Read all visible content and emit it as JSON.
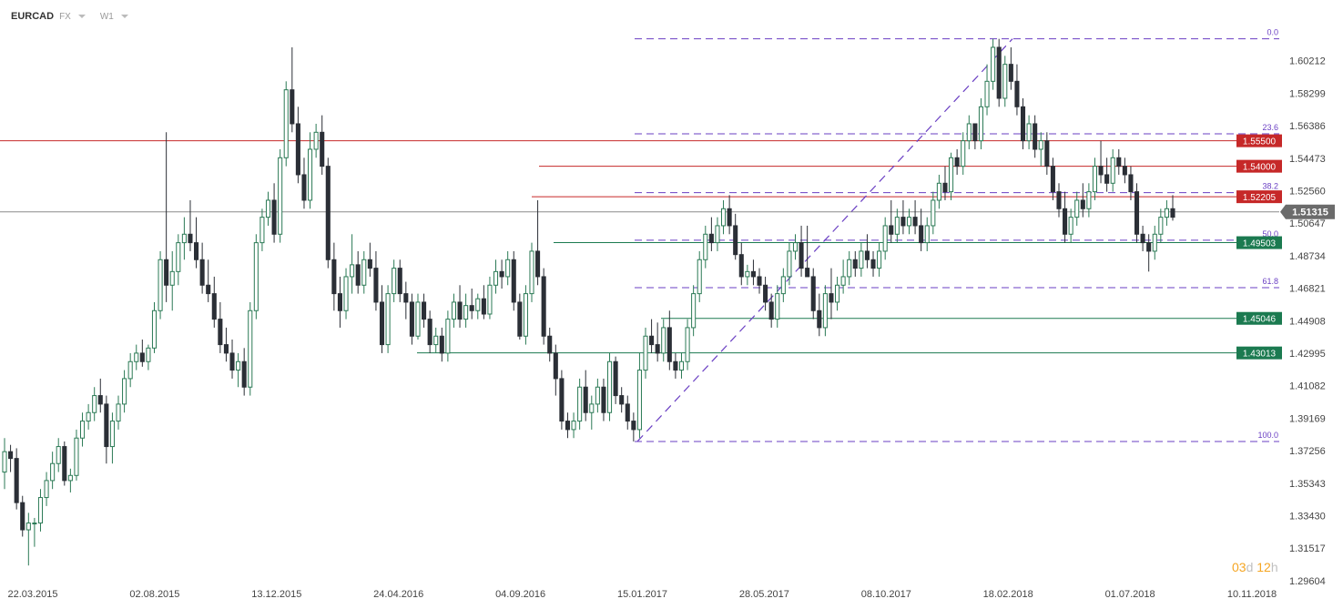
{
  "header": {
    "symbol": "EURCAD",
    "market": "FX",
    "interval": "W1"
  },
  "countdown": {
    "days": "03",
    "days_unit": "d",
    "hours": "12",
    "hours_unit": "h"
  },
  "colors": {
    "up": "#ffffff",
    "up_border": "#2b7a55",
    "down": "#2b2f36",
    "resistance": "#c62828",
    "support": "#1b7a50",
    "fib": "#6a3fc3",
    "current": "#8a8a8a"
  },
  "chart_data": {
    "type": "candlestick",
    "ylim": [
      1.296,
      1.625
    ],
    "y_ticks": [
      "1.60212",
      "1.58299",
      "1.56386",
      "1.54473",
      "1.52560",
      "1.50647",
      "1.48734",
      "1.46821",
      "1.44908",
      "1.42995",
      "1.41082",
      "1.39169",
      "1.37256",
      "1.35343",
      "1.33430",
      "1.31517",
      "1.29604"
    ],
    "x_ticks": [
      "22.03.2015",
      "02.08.2015",
      "13.12.2015",
      "24.04.2016",
      "04.09.2016",
      "15.01.2017",
      "28.05.2017",
      "08.10.2017",
      "18.02.2018",
      "01.07.2018",
      "10.11.2018"
    ],
    "current_price": {
      "label": "1.51315",
      "value": 1.51315
    },
    "resistance_levels": [
      {
        "label": "1.55500",
        "value": 1.555
      },
      {
        "label": "1.54000",
        "value": 1.54
      },
      {
        "label": "1.52205",
        "value": 1.52205
      }
    ],
    "support_levels": [
      {
        "label": "1.49503",
        "value": 1.49503
      },
      {
        "label": "1.45046",
        "value": 1.45046
      },
      {
        "label": "1.43013",
        "value": 1.43013
      }
    ],
    "fibonacci": {
      "high": 1.615,
      "low": 1.378,
      "levels": [
        {
          "label": "0.0",
          "ratio": 0.0
        },
        {
          "label": "23.6",
          "ratio": 0.236
        },
        {
          "label": "38.2",
          "ratio": 0.382
        },
        {
          "label": "50.0",
          "ratio": 0.5
        },
        {
          "label": "61.8",
          "ratio": 0.618
        },
        {
          "label": "100.0",
          "ratio": 1.0
        }
      ]
    },
    "candles": [
      [
        1.36,
        1.38,
        1.35,
        1.372
      ],
      [
        1.372,
        1.376,
        1.36,
        1.368
      ],
      [
        1.368,
        1.374,
        1.338,
        1.342
      ],
      [
        1.342,
        1.346,
        1.322,
        1.326
      ],
      [
        1.326,
        1.336,
        1.305,
        1.33
      ],
      [
        1.33,
        1.333,
        1.316,
        1.33
      ],
      [
        1.33,
        1.35,
        1.325,
        1.345
      ],
      [
        1.345,
        1.36,
        1.34,
        1.355
      ],
      [
        1.355,
        1.372,
        1.35,
        1.365
      ],
      [
        1.365,
        1.38,
        1.36,
        1.375
      ],
      [
        1.375,
        1.378,
        1.352,
        1.355
      ],
      [
        1.355,
        1.362,
        1.348,
        1.358
      ],
      [
        1.358,
        1.385,
        1.355,
        1.38
      ],
      [
        1.38,
        1.395,
        1.375,
        1.39
      ],
      [
        1.39,
        1.4,
        1.385,
        1.395
      ],
      [
        1.395,
        1.41,
        1.39,
        1.405
      ],
      [
        1.405,
        1.415,
        1.395,
        1.4
      ],
      [
        1.4,
        1.405,
        1.365,
        1.375
      ],
      [
        1.375,
        1.395,
        1.365,
        1.39
      ],
      [
        1.39,
        1.405,
        1.385,
        1.4
      ],
      [
        1.4,
        1.42,
        1.395,
        1.415
      ],
      [
        1.415,
        1.43,
        1.41,
        1.425
      ],
      [
        1.425,
        1.435,
        1.42,
        1.43
      ],
      [
        1.43,
        1.438,
        1.422,
        1.425
      ],
      [
        1.425,
        1.435,
        1.42,
        1.433
      ],
      [
        1.433,
        1.46,
        1.43,
        1.455
      ],
      [
        1.455,
        1.49,
        1.45,
        1.485
      ],
      [
        1.485,
        1.56,
        1.46,
        1.47
      ],
      [
        1.47,
        1.49,
        1.455,
        1.478
      ],
      [
        1.478,
        1.5,
        1.47,
        1.495
      ],
      [
        1.495,
        1.51,
        1.485,
        1.5
      ],
      [
        1.5,
        1.52,
        1.49,
        1.495
      ],
      [
        1.495,
        1.51,
        1.48,
        1.485
      ],
      [
        1.485,
        1.495,
        1.465,
        1.47
      ],
      [
        1.47,
        1.485,
        1.46,
        1.465
      ],
      [
        1.465,
        1.475,
        1.445,
        1.45
      ],
      [
        1.45,
        1.46,
        1.43,
        1.435
      ],
      [
        1.435,
        1.445,
        1.425,
        1.43
      ],
      [
        1.43,
        1.438,
        1.415,
        1.42
      ],
      [
        1.42,
        1.43,
        1.41,
        1.425
      ],
      [
        1.425,
        1.433,
        1.405,
        1.41
      ],
      [
        1.41,
        1.46,
        1.405,
        1.455
      ],
      [
        1.455,
        1.5,
        1.45,
        1.495
      ],
      [
        1.495,
        1.515,
        1.49,
        1.51
      ],
      [
        1.51,
        1.525,
        1.505,
        1.52
      ],
      [
        1.52,
        1.53,
        1.495,
        1.5
      ],
      [
        1.5,
        1.55,
        1.495,
        1.545
      ],
      [
        1.545,
        1.59,
        1.54,
        1.585
      ],
      [
        1.585,
        1.61,
        1.56,
        1.565
      ],
      [
        1.565,
        1.575,
        1.53,
        1.535
      ],
      [
        1.535,
        1.545,
        1.515,
        1.52
      ],
      [
        1.52,
        1.56,
        1.515,
        1.55
      ],
      [
        1.55,
        1.565,
        1.545,
        1.56
      ],
      [
        1.56,
        1.57,
        1.535,
        1.54
      ],
      [
        1.54,
        1.545,
        1.48,
        1.485
      ],
      [
        1.485,
        1.495,
        1.455,
        1.465
      ],
      [
        1.465,
        1.475,
        1.445,
        1.455
      ],
      [
        1.455,
        1.48,
        1.45,
        1.475
      ],
      [
        1.475,
        1.5,
        1.465,
        1.482
      ],
      [
        1.482,
        1.49,
        1.465,
        1.47
      ],
      [
        1.47,
        1.49,
        1.465,
        1.485
      ],
      [
        1.485,
        1.495,
        1.475,
        1.48
      ],
      [
        1.48,
        1.49,
        1.455,
        1.46
      ],
      [
        1.46,
        1.47,
        1.43,
        1.435
      ],
      [
        1.435,
        1.47,
        1.43,
        1.465
      ],
      [
        1.465,
        1.485,
        1.46,
        1.48
      ],
      [
        1.48,
        1.485,
        1.46,
        1.465
      ],
      [
        1.465,
        1.472,
        1.45,
        1.46
      ],
      [
        1.46,
        1.465,
        1.435,
        1.44
      ],
      [
        1.44,
        1.465,
        1.438,
        1.46
      ],
      [
        1.46,
        1.465,
        1.445,
        1.45
      ],
      [
        1.45,
        1.455,
        1.43,
        1.435
      ],
      [
        1.435,
        1.445,
        1.43,
        1.44
      ],
      [
        1.44,
        1.445,
        1.425,
        1.43
      ],
      [
        1.43,
        1.455,
        1.425,
        1.45
      ],
      [
        1.45,
        1.465,
        1.445,
        1.46
      ],
      [
        1.46,
        1.47,
        1.445,
        1.45
      ],
      [
        1.45,
        1.465,
        1.445,
        1.458
      ],
      [
        1.458,
        1.468,
        1.45,
        1.455
      ],
      [
        1.455,
        1.465,
        1.45,
        1.462
      ],
      [
        1.462,
        1.47,
        1.45,
        1.453
      ],
      [
        1.453,
        1.475,
        1.45,
        1.47
      ],
      [
        1.47,
        1.485,
        1.465,
        1.478
      ],
      [
        1.478,
        1.485,
        1.468,
        1.475
      ],
      [
        1.475,
        1.49,
        1.47,
        1.485
      ],
      [
        1.485,
        1.49,
        1.455,
        1.46
      ],
      [
        1.46,
        1.465,
        1.438,
        1.44
      ],
      [
        1.44,
        1.47,
        1.435,
        1.465
      ],
      [
        1.465,
        1.495,
        1.46,
        1.49
      ],
      [
        1.49,
        1.52,
        1.47,
        1.475
      ],
      [
        1.475,
        1.48,
        1.435,
        1.44
      ],
      [
        1.44,
        1.445,
        1.425,
        1.43
      ],
      [
        1.43,
        1.435,
        1.405,
        1.415
      ],
      [
        1.415,
        1.42,
        1.385,
        1.39
      ],
      [
        1.39,
        1.395,
        1.38,
        1.385
      ],
      [
        1.385,
        1.395,
        1.38,
        1.39
      ],
      [
        1.39,
        1.415,
        1.385,
        1.41
      ],
      [
        1.41,
        1.42,
        1.39,
        1.395
      ],
      [
        1.395,
        1.405,
        1.385,
        1.4
      ],
      [
        1.4,
        1.415,
        1.395,
        1.41
      ],
      [
        1.41,
        1.415,
        1.39,
        1.395
      ],
      [
        1.395,
        1.43,
        1.39,
        1.425
      ],
      [
        1.425,
        1.428,
        1.4,
        1.405
      ],
      [
        1.405,
        1.41,
        1.395,
        1.4
      ],
      [
        1.4,
        1.405,
        1.385,
        1.39
      ],
      [
        1.39,
        1.395,
        1.378,
        1.385
      ],
      [
        1.385,
        1.43,
        1.38,
        1.42
      ],
      [
        1.42,
        1.445,
        1.415,
        1.44
      ],
      [
        1.44,
        1.45,
        1.43,
        1.435
      ],
      [
        1.435,
        1.448,
        1.425,
        1.43
      ],
      [
        1.43,
        1.45,
        1.425,
        1.445
      ],
      [
        1.445,
        1.455,
        1.42,
        1.425
      ],
      [
        1.425,
        1.43,
        1.415,
        1.42
      ],
      [
        1.42,
        1.43,
        1.415,
        1.425
      ],
      [
        1.425,
        1.45,
        1.42,
        1.445
      ],
      [
        1.445,
        1.47,
        1.44,
        1.465
      ],
      [
        1.465,
        1.49,
        1.46,
        1.485
      ],
      [
        1.485,
        1.505,
        1.48,
        1.5
      ],
      [
        1.5,
        1.51,
        1.49,
        1.495
      ],
      [
        1.495,
        1.51,
        1.49,
        1.505
      ],
      [
        1.505,
        1.52,
        1.5,
        1.515
      ],
      [
        1.515,
        1.523,
        1.5,
        1.505
      ],
      [
        1.505,
        1.512,
        1.485,
        1.488
      ],
      [
        1.488,
        1.495,
        1.47,
        1.475
      ],
      [
        1.475,
        1.482,
        1.47,
        1.478
      ],
      [
        1.478,
        1.485,
        1.47,
        1.475
      ],
      [
        1.475,
        1.48,
        1.465,
        1.47
      ],
      [
        1.47,
        1.475,
        1.455,
        1.46
      ],
      [
        1.46,
        1.465,
        1.445,
        1.45
      ],
      [
        1.45,
        1.47,
        1.445,
        1.465
      ],
      [
        1.465,
        1.48,
        1.46,
        1.475
      ],
      [
        1.475,
        1.495,
        1.47,
        1.49
      ],
      [
        1.49,
        1.5,
        1.485,
        1.495
      ],
      [
        1.495,
        1.505,
        1.475,
        1.48
      ],
      [
        1.48,
        1.505,
        1.475,
        1.475
      ],
      [
        1.475,
        1.48,
        1.45,
        1.455
      ],
      [
        1.455,
        1.465,
        1.44,
        1.445
      ],
      [
        1.445,
        1.47,
        1.44,
        1.465
      ],
      [
        1.465,
        1.48,
        1.45,
        1.46
      ],
      [
        1.46,
        1.475,
        1.455,
        1.47
      ],
      [
        1.47,
        1.485,
        1.465,
        1.475
      ],
      [
        1.475,
        1.49,
        1.47,
        1.485
      ],
      [
        1.485,
        1.49,
        1.475,
        1.48
      ],
      [
        1.48,
        1.495,
        1.475,
        1.49
      ],
      [
        1.49,
        1.5,
        1.48,
        1.485
      ],
      [
        1.485,
        1.49,
        1.475,
        1.48
      ],
      [
        1.48,
        1.495,
        1.475,
        1.49
      ],
      [
        1.49,
        1.51,
        1.485,
        1.505
      ],
      [
        1.505,
        1.52,
        1.495,
        1.5
      ],
      [
        1.5,
        1.515,
        1.495,
        1.51
      ],
      [
        1.51,
        1.52,
        1.5,
        1.505
      ],
      [
        1.505,
        1.515,
        1.5,
        1.51
      ],
      [
        1.51,
        1.52,
        1.5,
        1.505
      ],
      [
        1.505,
        1.515,
        1.49,
        1.495
      ],
      [
        1.495,
        1.51,
        1.49,
        1.505
      ],
      [
        1.505,
        1.525,
        1.5,
        1.52
      ],
      [
        1.52,
        1.535,
        1.515,
        1.53
      ],
      [
        1.53,
        1.54,
        1.52,
        1.525
      ],
      [
        1.525,
        1.548,
        1.52,
        1.545
      ],
      [
        1.545,
        1.55,
        1.535,
        1.54
      ],
      [
        1.54,
        1.56,
        1.535,
        1.555
      ],
      [
        1.555,
        1.57,
        1.55,
        1.565
      ],
      [
        1.565,
        1.565,
        1.55,
        1.555
      ],
      [
        1.555,
        1.58,
        1.55,
        1.575
      ],
      [
        1.575,
        1.6,
        1.57,
        1.59
      ],
      [
        1.59,
        1.615,
        1.585,
        1.61
      ],
      [
        1.61,
        1.615,
        1.575,
        1.58
      ],
      [
        1.58,
        1.605,
        1.575,
        1.6
      ],
      [
        1.6,
        1.61,
        1.585,
        1.59
      ],
      [
        1.59,
        1.6,
        1.57,
        1.575
      ],
      [
        1.575,
        1.58,
        1.55,
        1.555
      ],
      [
        1.555,
        1.57,
        1.55,
        1.565
      ],
      [
        1.565,
        1.57,
        1.545,
        1.55
      ],
      [
        1.55,
        1.56,
        1.54,
        1.555
      ],
      [
        1.555,
        1.56,
        1.535,
        1.54
      ],
      [
        1.54,
        1.545,
        1.52,
        1.525
      ],
      [
        1.525,
        1.53,
        1.51,
        1.515
      ],
      [
        1.515,
        1.525,
        1.495,
        1.5
      ],
      [
        1.5,
        1.515,
        1.495,
        1.51
      ],
      [
        1.51,
        1.525,
        1.505,
        1.52
      ],
      [
        1.52,
        1.53,
        1.51,
        1.515
      ],
      [
        1.515,
        1.53,
        1.51,
        1.525
      ],
      [
        1.525,
        1.545,
        1.52,
        1.54
      ],
      [
        1.54,
        1.555,
        1.53,
        1.535
      ],
      [
        1.535,
        1.545,
        1.525,
        1.53
      ],
      [
        1.53,
        1.55,
        1.525,
        1.545
      ],
      [
        1.545,
        1.55,
        1.535,
        1.54
      ],
      [
        1.54,
        1.545,
        1.53,
        1.535
      ],
      [
        1.535,
        1.54,
        1.52,
        1.525
      ],
      [
        1.525,
        1.53,
        1.495,
        1.5
      ],
      [
        1.5,
        1.505,
        1.49,
        1.495
      ],
      [
        1.495,
        1.5,
        1.478,
        1.49
      ],
      [
        1.49,
        1.505,
        1.485,
        1.5
      ],
      [
        1.5,
        1.515,
        1.495,
        1.51
      ],
      [
        1.51,
        1.52,
        1.505,
        1.515
      ],
      [
        1.515,
        1.523,
        1.508,
        1.51
      ]
    ]
  }
}
